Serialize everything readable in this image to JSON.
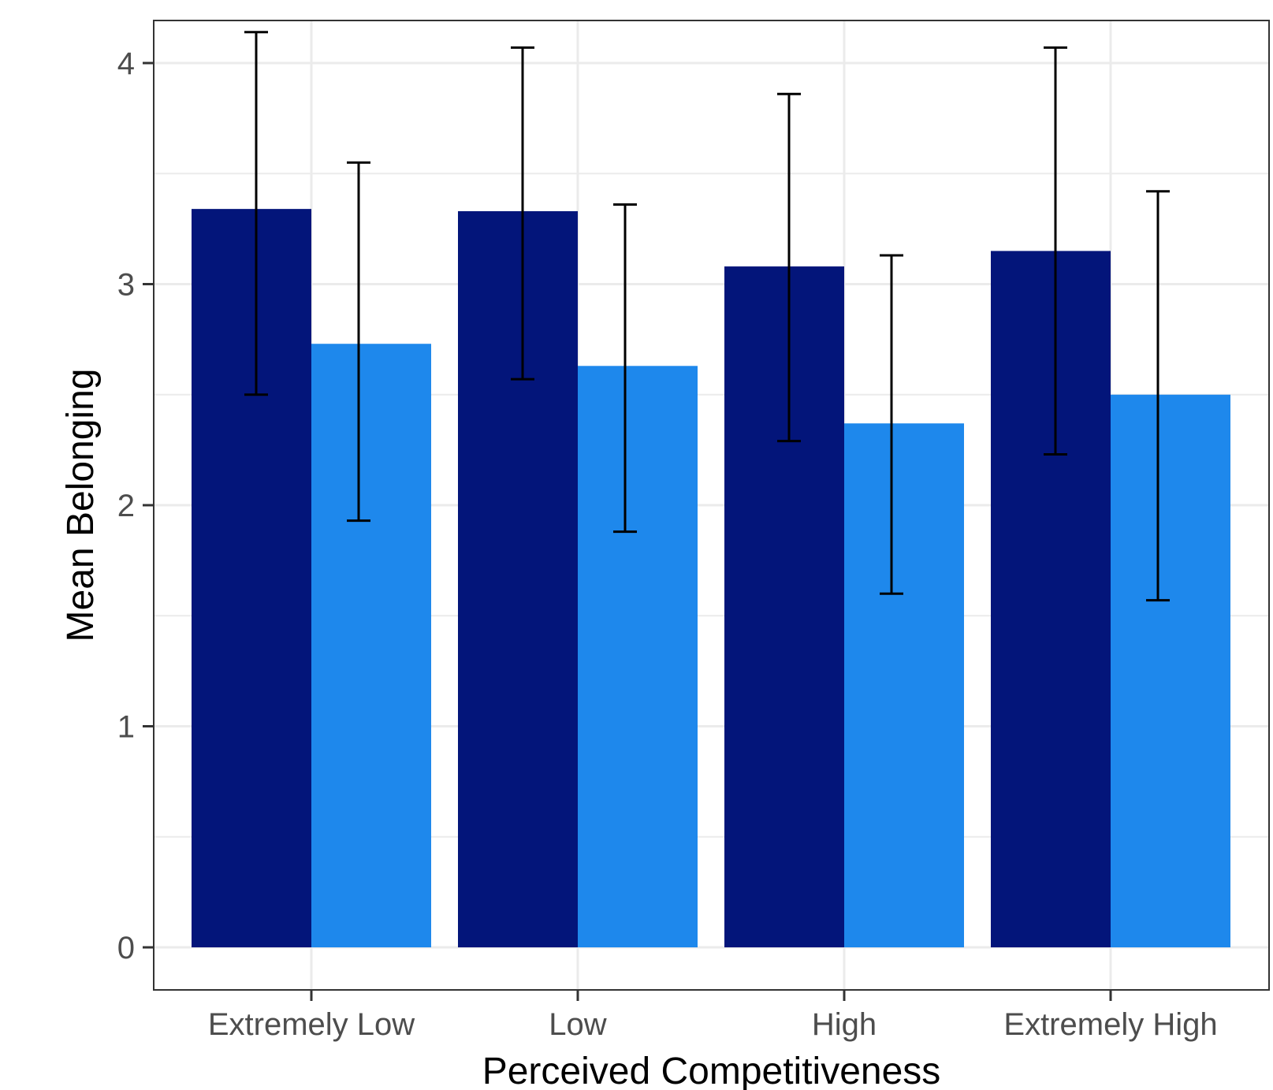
{
  "chart_data": {
    "type": "bar",
    "title": "",
    "xlabel": "Perceived Competitiveness",
    "ylabel": "Mean Belonging",
    "categories": [
      "Extremely Low",
      "Low",
      "High",
      "Extremely High"
    ],
    "series": [
      {
        "values": [
          3.34,
          3.33,
          3.08,
          3.15
        ],
        "error_low": [
          2.5,
          2.57,
          2.29,
          2.23
        ],
        "error_high": [
          4.14,
          4.07,
          3.86,
          4.07
        ],
        "color": "#03157a"
      },
      {
        "values": [
          2.73,
          2.63,
          2.37,
          2.5
        ],
        "error_low": [
          1.93,
          1.88,
          1.6,
          1.57
        ],
        "error_high": [
          3.55,
          3.36,
          3.13,
          3.42
        ],
        "color": "#1e88ec"
      }
    ],
    "yticks": [
      0,
      1,
      2,
      3,
      4
    ],
    "ylim": [
      -0.2,
      4.2
    ],
    "grid": true,
    "legend": "none",
    "panel_border_color": "#333333",
    "grid_color": "#ebebeb"
  }
}
